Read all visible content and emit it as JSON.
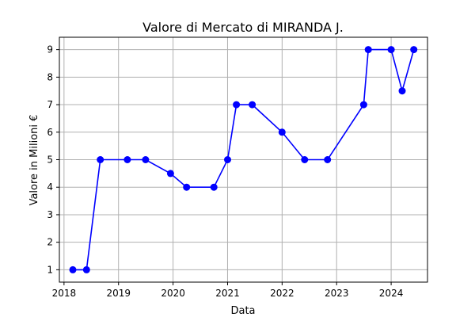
{
  "chart_data": {
    "type": "line",
    "title": "Valore di Mercato di MIRANDA J.",
    "xlabel": "Data",
    "ylabel": "Valore in Milioni €",
    "x_ticks": [
      "2018",
      "2019",
      "2020",
      "2021",
      "2022",
      "2023",
      "2024"
    ],
    "y_ticks": [
      "1",
      "2",
      "3",
      "4",
      "5",
      "6",
      "7",
      "8",
      "9"
    ],
    "xlim": [
      "2017-12-01",
      "2024-09-01"
    ],
    "ylim": [
      0.55,
      9.45
    ],
    "grid": true,
    "series": [
      {
        "color": "#0000ff",
        "points": [
          {
            "x": "2018-03-01",
            "y": 1
          },
          {
            "x": "2018-06-01",
            "y": 1
          },
          {
            "x": "2018-09-01",
            "y": 5
          },
          {
            "x": "2019-03-01",
            "y": 5
          },
          {
            "x": "2019-07-01",
            "y": 5
          },
          {
            "x": "2019-12-15",
            "y": 4.5
          },
          {
            "x": "2020-04-01",
            "y": 4
          },
          {
            "x": "2020-10-01",
            "y": 4
          },
          {
            "x": "2021-01-01",
            "y": 5
          },
          {
            "x": "2021-03-01",
            "y": 7
          },
          {
            "x": "2021-06-15",
            "y": 7
          },
          {
            "x": "2022-01-01",
            "y": 6
          },
          {
            "x": "2022-06-01",
            "y": 5
          },
          {
            "x": "2022-11-01",
            "y": 5
          },
          {
            "x": "2023-07-01",
            "y": 7
          },
          {
            "x": "2023-08-01",
            "y": 9
          },
          {
            "x": "2024-01-01",
            "y": 9
          },
          {
            "x": "2024-03-15",
            "y": 7.5
          },
          {
            "x": "2024-06-01",
            "y": 9
          }
        ]
      }
    ]
  }
}
